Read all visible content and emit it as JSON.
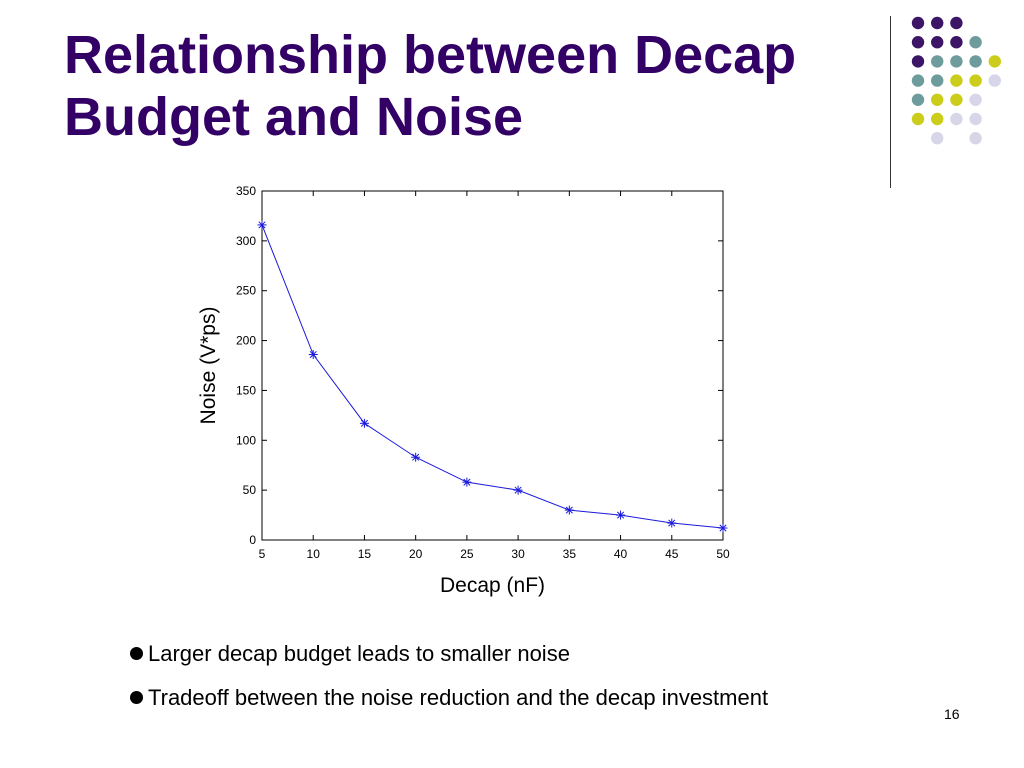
{
  "slide": {
    "title": "Relationship between Decap Budget and Noise",
    "page_number": "16",
    "bullets": [
      "Larger decap budget leads to smaller noise",
      "Tradeoff between the noise reduction and the decap investment"
    ]
  },
  "decoration": {
    "colors": {
      "purple": "#3d1566",
      "teal": "#6e9c9c",
      "yellow": "#cccc1a",
      "lavender": "#d6d6e8"
    },
    "dot_rows": [
      [
        "purple",
        "purple",
        "purple",
        "",
        ""
      ],
      [
        "purple",
        "purple",
        "purple",
        "teal",
        ""
      ],
      [
        "purple",
        "teal",
        "teal",
        "teal",
        "yellow"
      ],
      [
        "teal",
        "teal",
        "yellow",
        "yellow",
        "lavender"
      ],
      [
        "teal",
        "yellow",
        "yellow",
        "lavender",
        ""
      ],
      [
        "yellow",
        "yellow",
        "lavender",
        "lavender",
        ""
      ],
      [
        "",
        "lavender",
        "",
        "lavender",
        ""
      ]
    ]
  },
  "chart_data": {
    "type": "line",
    "xlabel": "Decap (nF)",
    "ylabel": "Noise (V*ps)",
    "xlim": [
      5,
      50
    ],
    "ylim": [
      0,
      350
    ],
    "x_ticks": [
      5,
      10,
      15,
      20,
      25,
      30,
      35,
      40,
      45,
      50
    ],
    "y_ticks": [
      0,
      50,
      100,
      150,
      200,
      250,
      300,
      350
    ],
    "grid": false,
    "marker": "asterisk",
    "line_color": "#1a1adb",
    "series": [
      {
        "x": [
          5,
          10,
          15,
          20,
          25,
          30,
          35,
          40,
          45,
          50
        ],
        "values": [
          316,
          186,
          117,
          83,
          58,
          50,
          30,
          25,
          17,
          12
        ]
      }
    ]
  }
}
